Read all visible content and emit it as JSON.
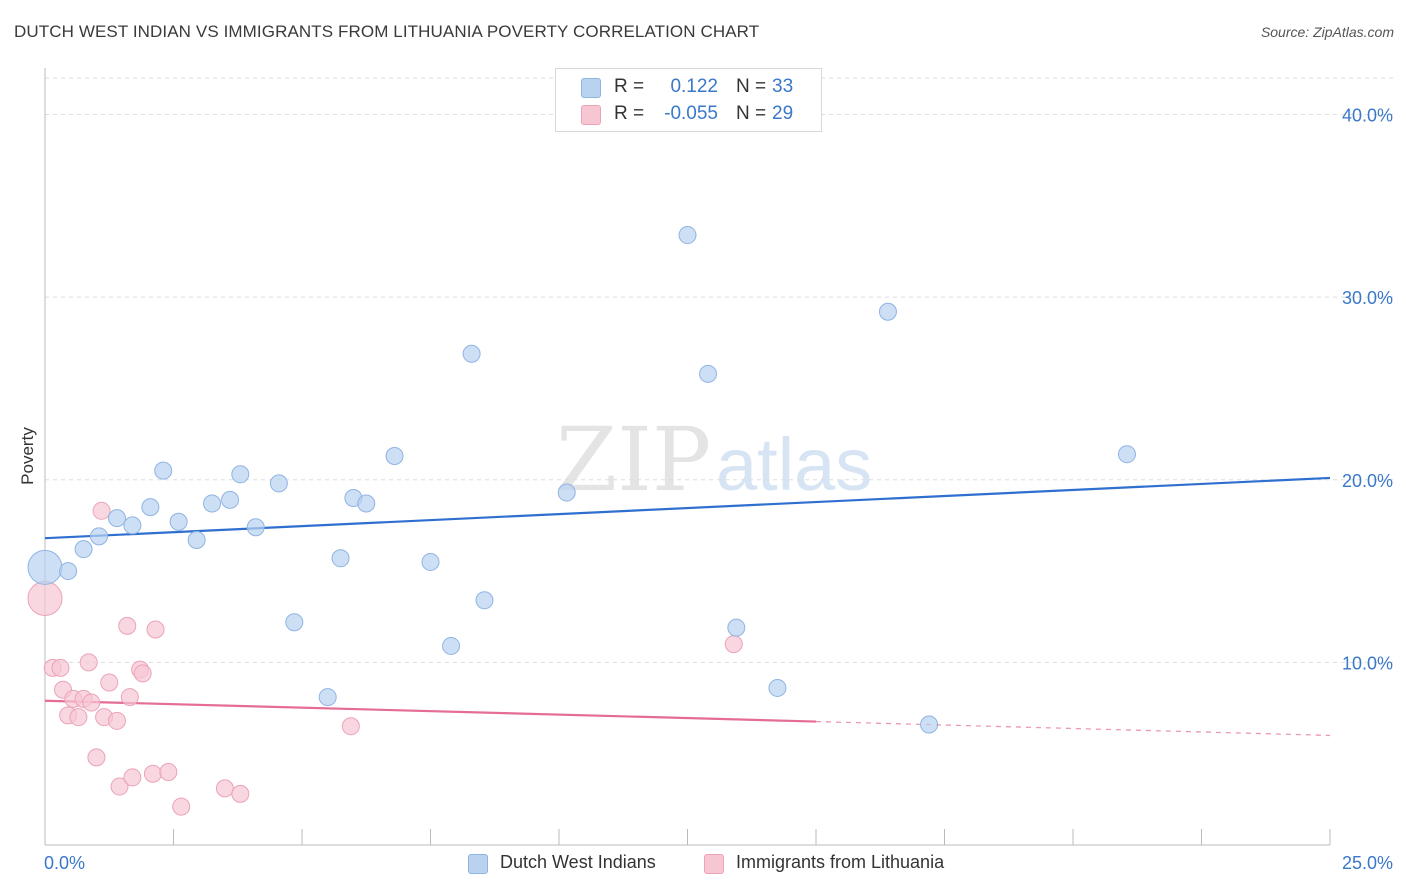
{
  "title": "DUTCH WEST INDIAN VS IMMIGRANTS FROM LITHUANIA POVERTY CORRELATION CHART",
  "source": "Source: ZipAtlas.com",
  "watermark": {
    "zip": "ZIP",
    "atlas": "atlas"
  },
  "legend_top": [
    {
      "r_label": "R =",
      "r_value": "0.122",
      "n_label": "N =",
      "n_value": "33"
    },
    {
      "r_label": "R =",
      "r_value": "-0.055",
      "n_label": "N =",
      "n_value": "29"
    }
  ],
  "colors": {
    "blue_fill": "#b8d2f0",
    "blue_stroke": "#8fb4e3",
    "blue_line": "#2f6fcf",
    "pink_fill": "#f7c6d3",
    "pink_stroke": "#eba3b8",
    "pink_line": "#e46c95",
    "axis_text": "#3a78c9",
    "grid": "#dddddd"
  },
  "chart_data": {
    "type": "scatter",
    "title": "DUTCH WEST INDIAN VS IMMIGRANTS FROM LITHUANIA POVERTY CORRELATION CHART",
    "xlabel": "",
    "ylabel": "Poverty",
    "xlim": [
      0,
      25
    ],
    "ylim": [
      0,
      42
    ],
    "x_tick_labels": [
      "0.0%",
      "25.0%"
    ],
    "y_ticks": [
      10,
      20,
      30,
      40
    ],
    "y_tick_labels": [
      "10.0%",
      "20.0%",
      "30.0%",
      "40.0%"
    ],
    "series": [
      {
        "name": "Dutch West Indians",
        "r": 0.122,
        "n": 33,
        "trend": {
          "x0": 0,
          "y0": 16.8,
          "x1": 25,
          "y1": 20.1,
          "solid_until": 25
        },
        "points": [
          {
            "x": 0.0,
            "y": 15.2,
            "big": true
          },
          {
            "x": 0.45,
            "y": 15.0
          },
          {
            "x": 0.75,
            "y": 16.2
          },
          {
            "x": 1.05,
            "y": 16.9
          },
          {
            "x": 1.4,
            "y": 17.9
          },
          {
            "x": 1.7,
            "y": 17.5
          },
          {
            "x": 2.05,
            "y": 18.5
          },
          {
            "x": 2.3,
            "y": 20.5
          },
          {
            "x": 2.6,
            "y": 17.7
          },
          {
            "x": 2.95,
            "y": 16.7
          },
          {
            "x": 3.25,
            "y": 18.7
          },
          {
            "x": 3.6,
            "y": 18.9
          },
          {
            "x": 3.8,
            "y": 20.3
          },
          {
            "x": 4.1,
            "y": 17.4
          },
          {
            "x": 4.55,
            "y": 19.8
          },
          {
            "x": 4.85,
            "y": 12.2
          },
          {
            "x": 5.5,
            "y": 8.1
          },
          {
            "x": 5.75,
            "y": 15.7
          },
          {
            "x": 6.0,
            "y": 19.0
          },
          {
            "x": 6.25,
            "y": 18.7
          },
          {
            "x": 6.8,
            "y": 21.3
          },
          {
            "x": 7.5,
            "y": 15.5
          },
          {
            "x": 7.9,
            "y": 10.9
          },
          {
            "x": 8.3,
            "y": 26.9
          },
          {
            "x": 8.55,
            "y": 13.4
          },
          {
            "x": 10.15,
            "y": 19.3
          },
          {
            "x": 12.5,
            "y": 33.4
          },
          {
            "x": 12.9,
            "y": 25.8
          },
          {
            "x": 13.45,
            "y": 11.9
          },
          {
            "x": 14.25,
            "y": 8.6
          },
          {
            "x": 16.4,
            "y": 29.2
          },
          {
            "x": 17.2,
            "y": 6.6
          },
          {
            "x": 21.05,
            "y": 21.4
          }
        ]
      },
      {
        "name": "Immigrants from Lithuania",
        "r": -0.055,
        "n": 29,
        "trend": {
          "x0": 0,
          "y0": 7.9,
          "x1": 25,
          "y1": 6.0,
          "solid_until": 15
        },
        "points": [
          {
            "x": 0.0,
            "y": 13.5,
            "big": true
          },
          {
            "x": 0.15,
            "y": 9.7
          },
          {
            "x": 0.3,
            "y": 9.7
          },
          {
            "x": 0.35,
            "y": 8.5
          },
          {
            "x": 0.45,
            "y": 7.1
          },
          {
            "x": 0.55,
            "y": 8.0
          },
          {
            "x": 0.65,
            "y": 7.0
          },
          {
            "x": 0.75,
            "y": 8.0
          },
          {
            "x": 0.85,
            "y": 10.0
          },
          {
            "x": 0.9,
            "y": 7.8
          },
          {
            "x": 1.0,
            "y": 4.8
          },
          {
            "x": 1.1,
            "y": 18.3
          },
          {
            "x": 1.15,
            "y": 7.0
          },
          {
            "x": 1.25,
            "y": 8.9
          },
          {
            "x": 1.4,
            "y": 6.8
          },
          {
            "x": 1.45,
            "y": 3.2
          },
          {
            "x": 1.6,
            "y": 12.0
          },
          {
            "x": 1.65,
            "y": 8.1
          },
          {
            "x": 1.7,
            "y": 3.7
          },
          {
            "x": 1.85,
            "y": 9.6
          },
          {
            "x": 1.9,
            "y": 9.4
          },
          {
            "x": 2.15,
            "y": 11.8
          },
          {
            "x": 2.1,
            "y": 3.9
          },
          {
            "x": 2.4,
            "y": 4.0
          },
          {
            "x": 2.65,
            "y": 2.1
          },
          {
            "x": 3.5,
            "y": 3.1
          },
          {
            "x": 3.8,
            "y": 2.8
          },
          {
            "x": 5.95,
            "y": 6.5
          },
          {
            "x": 13.4,
            "y": 11.0
          }
        ]
      }
    ]
  }
}
